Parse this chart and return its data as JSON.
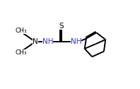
{
  "bg_color": "#ffffff",
  "line_color": "#000000",
  "text_color": "#3333cc",
  "bond_lw": 1.4,
  "figsize": [
    1.98,
    1.26
  ],
  "dpi": 100,
  "xlim": [
    0,
    10
  ],
  "ylim": [
    0,
    6.4
  ]
}
